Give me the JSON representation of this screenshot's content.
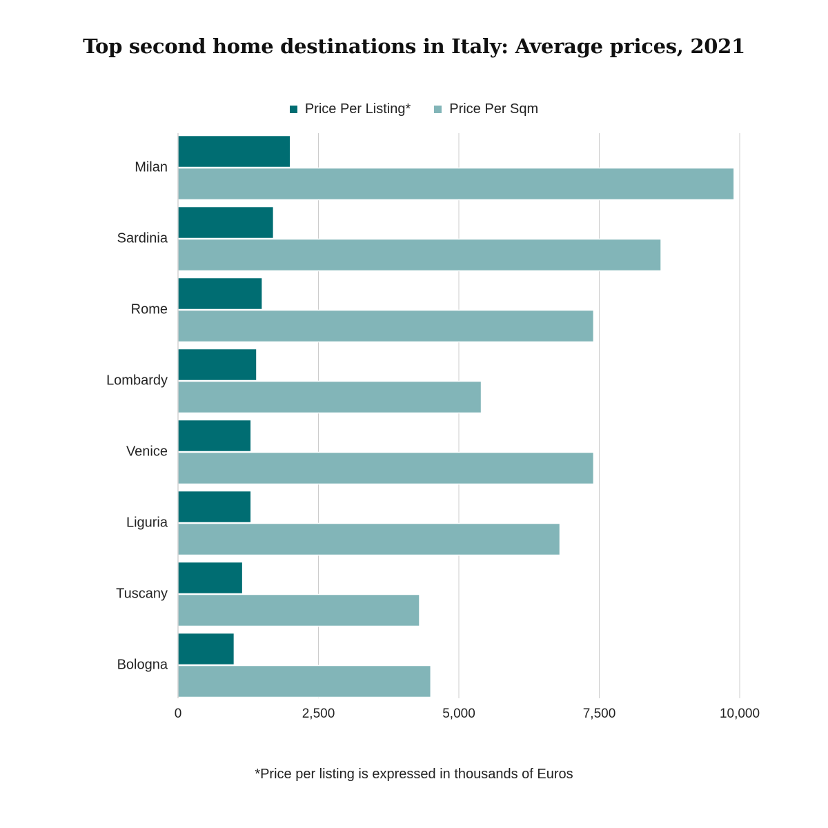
{
  "chart_data": {
    "type": "bar",
    "orientation": "horizontal",
    "title": "Top second home destinations in Italy: Average prices, 2021",
    "categories": [
      "Milan",
      "Sardinia",
      "Rome",
      "Lombardy",
      "Venice",
      "Liguria",
      "Tuscany",
      "Bologna"
    ],
    "series": [
      {
        "name": "Price Per Listing*",
        "color": "#006d72",
        "values": [
          2000,
          1700,
          1500,
          1400,
          1300,
          1300,
          1150,
          1000
        ]
      },
      {
        "name": "Price Per Sqm",
        "color": "#82b5b8",
        "values": [
          9900,
          8600,
          7400,
          5400,
          7400,
          6800,
          4300,
          4500
        ]
      }
    ],
    "xlim": [
      0,
      10000
    ],
    "xticks": [
      0,
      2500,
      5000,
      7500,
      10000
    ],
    "xtick_labels": [
      "0",
      "2,500",
      "5,000",
      "7,500",
      "10,000"
    ],
    "grid": true,
    "legend_position": "top-center",
    "footnote": "*Price per listing is expressed in thousands of Euros"
  }
}
